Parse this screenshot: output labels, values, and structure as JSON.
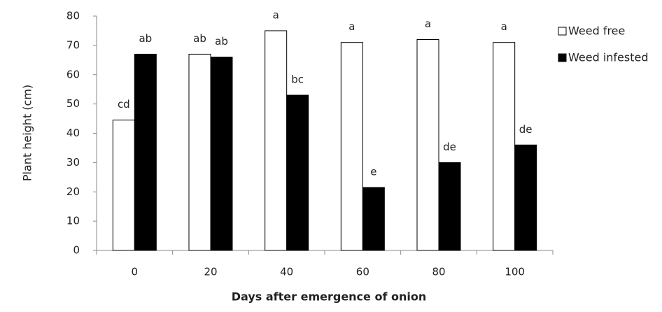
{
  "chart_data": {
    "type": "bar",
    "xlabel": "Days after emergence of onion",
    "ylabel": "Plant height (cm)",
    "categories": [
      "0",
      "20",
      "40",
      "60",
      "80",
      "100"
    ],
    "series": [
      {
        "name": "Weed free",
        "color": "#ffffff",
        "values": [
          44.5,
          67,
          75,
          71,
          72,
          71
        ],
        "letters": [
          "cd",
          "ab",
          "a",
          "a",
          "a",
          "a"
        ]
      },
      {
        "name": "Weed infested",
        "color": "#000000",
        "values": [
          67,
          66,
          53,
          21.5,
          30,
          36
        ],
        "letters": [
          "ab",
          "ab",
          "bc",
          "e",
          "de",
          "de"
        ]
      }
    ],
    "ylim": [
      0,
      80
    ],
    "yticks": [
      0,
      10,
      20,
      30,
      40,
      50,
      60,
      70,
      80
    ],
    "legend": "right"
  }
}
